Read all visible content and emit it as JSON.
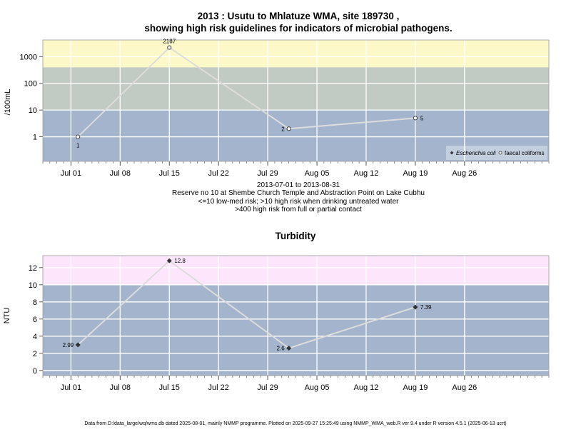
{
  "colors": {
    "low": "#a3b4cc",
    "mid": "#c2cbc3",
    "high": "#fdf8c8",
    "turb_high": "#fde6fb",
    "grid": "#ffffff",
    "line": "#dcdcdc",
    "point_stroke": "#333333"
  },
  "chart_data": [
    {
      "type": "line",
      "title": "2013 : Usutu to Mhlatuze WMA, site 189730 ,",
      "subtitle": "showing high risk guidelines for indicators of microbial pathogens.",
      "ylabel": "/100mL",
      "yscale": "log",
      "ylim": [
        0.12,
        4200
      ],
      "y_ticks": [
        1,
        10,
        100,
        1000
      ],
      "y_tick_labels": [
        "1",
        "10",
        "100",
        "1000"
      ],
      "xlim": [
        "2013-06-27",
        "2013-09-07"
      ],
      "x_ticks": [
        "2013-07-01",
        "2013-07-08",
        "2013-07-15",
        "2013-07-22",
        "2013-07-29",
        "2013-08-05",
        "2013-08-12",
        "2013-08-19",
        "2013-08-26"
      ],
      "x_tick_labels": [
        "Jul 01",
        "Jul 08",
        "Jul 15",
        "Jul 22",
        "Jul 29",
        "Aug 05",
        "Aug 12",
        "Aug 19",
        "Aug 26"
      ],
      "bands": [
        {
          "from": 0.12,
          "to": 10,
          "color": "#a3b4cc"
        },
        {
          "from": 10,
          "to": 400,
          "color": "#c2cbc3"
        },
        {
          "from": 400,
          "to": 4200,
          "color": "#fdf8c8"
        }
      ],
      "series": [
        {
          "name": "faecal coliforms",
          "marker": "circle-open",
          "points": [
            {
              "x": "2013-07-02",
              "y": 1,
              "label": "1",
              "label_pos": "below"
            },
            {
              "x": "2013-07-15",
              "y": 2187,
              "label": "2187",
              "label_pos": "above"
            },
            {
              "x": "2013-08-01",
              "y": 2,
              "label": "2",
              "label_pos": "left"
            },
            {
              "x": "2013-08-19",
              "y": 5,
              "label": "5",
              "label_pos": "right"
            }
          ]
        }
      ],
      "legend": {
        "position": "bottom-right",
        "items": [
          {
            "label": "Escherichia coli",
            "marker": "diamond-filled",
            "italic": true
          },
          {
            "label": "faecal coliforms",
            "marker": "circle-open",
            "italic": false
          }
        ]
      },
      "notes": [
        "2013-07-01 to 2013-08-31",
        "Reserve no 10 at Shembe Church Temple and Abstraction Point on Lake Cubhu",
        "<=10 low-med risk; >10 high risk when drinking untreated water",
        ">400 high risk from full or partial contact"
      ]
    },
    {
      "type": "line",
      "title": "Turbidity",
      "ylabel": "NTU",
      "ylim": [
        -0.6,
        13.4
      ],
      "y_ticks": [
        0,
        2,
        4,
        6,
        8,
        10,
        12
      ],
      "y_tick_labels": [
        "0",
        "2",
        "4",
        "6",
        "8",
        "10",
        "12"
      ],
      "xlim": [
        "2013-06-27",
        "2013-09-07"
      ],
      "x_ticks": [
        "2013-07-01",
        "2013-07-08",
        "2013-07-15",
        "2013-07-22",
        "2013-07-29",
        "2013-08-05",
        "2013-08-12",
        "2013-08-19",
        "2013-08-26"
      ],
      "x_tick_labels": [
        "Jul 01",
        "Jul 08",
        "Jul 15",
        "Jul 22",
        "Jul 29",
        "Aug 05",
        "Aug 12",
        "Aug 19",
        "Aug 26"
      ],
      "bands": [
        {
          "from": -0.6,
          "to": 10,
          "color": "#a3b4cc"
        },
        {
          "from": 10,
          "to": 13.4,
          "color": "#fde6fb"
        }
      ],
      "series": [
        {
          "marker": "diamond-filled",
          "points": [
            {
              "x": "2013-07-02",
              "y": 2.99,
              "label": "2.99",
              "label_pos": "left"
            },
            {
              "x": "2013-07-15",
              "y": 12.8,
              "label": "12.8",
              "label_pos": "right"
            },
            {
              "x": "2013-08-01",
              "y": 2.6,
              "label": "2.6",
              "label_pos": "left"
            },
            {
              "x": "2013-08-19",
              "y": 7.39,
              "label": "7.39",
              "label_pos": "right"
            }
          ]
        }
      ]
    }
  ],
  "footer": "Data from D:/data_large/wq/wms.db dated 2025-08-01, mainly NMMP programme. Plotted on 2025-09-27 15:25:49 using NMMP_WMA_web.R ver 9.4 under R version 4.5.1 (2025-06-13 ucrt)"
}
